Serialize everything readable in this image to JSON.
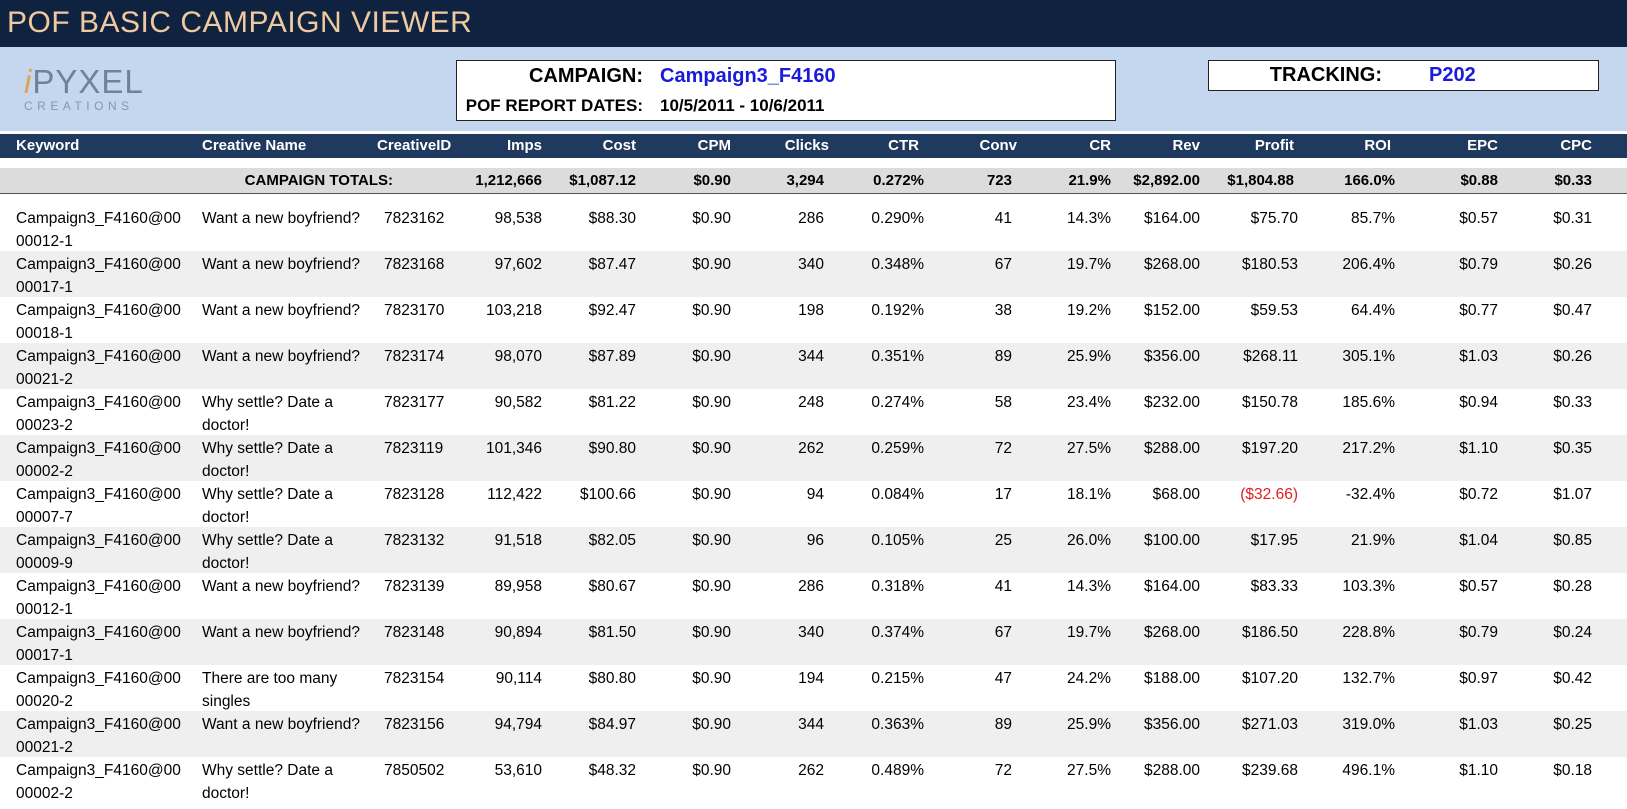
{
  "title": "POF BASIC CAMPAIGN VIEWER",
  "logo": {
    "letter_i": "i",
    "letters_rest": "PYXEL",
    "subtitle": "CREATIONS"
  },
  "campaign_box": {
    "campaign_label": "CAMPAIGN:",
    "campaign_value": "Campaign3_F4160",
    "dates_label": "POF REPORT DATES:",
    "dates_value": "10/5/2011 - 10/6/2011"
  },
  "tracking_box": {
    "label": "TRACKING:",
    "value": "P202"
  },
  "colors": {
    "title_bg": "#0f2341",
    "title_text": "#f0c9a0",
    "header_band": "#c4d7ef",
    "column_header_bg": "#1f3a5e",
    "link_blue": "#1a1adb",
    "negative": "#e02020"
  },
  "columns": [
    "Keyword",
    "Creative Name",
    "CreativeID",
    "Imps",
    "Cost",
    "CPM",
    "Clicks",
    "CTR",
    "Conv",
    "CR",
    "Rev",
    "Profit",
    "ROI",
    "EPC",
    "CPC"
  ],
  "totals": {
    "label": "CAMPAIGN TOTALS:",
    "imps": "1,212,666",
    "cost": "$1,087.12",
    "cpm": "$0.90",
    "clicks": "3,294",
    "ctr": "0.272%",
    "conv": "723",
    "cr": "21.9%",
    "rev": "$2,892.00",
    "profit": "$1,804.88",
    "roi": "166.0%",
    "epc": "$0.88",
    "cpc": "$0.33"
  },
  "rows": [
    {
      "kw1": "Campaign3_F4160@00",
      "kw2": "00012-1",
      "cn1": "Want a new boyfriend?",
      "cn2": "",
      "id": "7823162",
      "imps": "98,538",
      "cost": "$88.30",
      "cpm": "$0.90",
      "clicks": "286",
      "ctr": "0.290%",
      "conv": "41",
      "cr": "14.3%",
      "rev": "$164.00",
      "profit": "$75.70",
      "roi": "85.7%",
      "epc": "$0.57",
      "cpc": "$0.31"
    },
    {
      "kw1": "Campaign3_F4160@00",
      "kw2": "00017-1",
      "cn1": "Want a new boyfriend?",
      "cn2": "",
      "id": "7823168",
      "imps": "97,602",
      "cost": "$87.47",
      "cpm": "$0.90",
      "clicks": "340",
      "ctr": "0.348%",
      "conv": "67",
      "cr": "19.7%",
      "rev": "$268.00",
      "profit": "$180.53",
      "roi": "206.4%",
      "epc": "$0.79",
      "cpc": "$0.26"
    },
    {
      "kw1": "Campaign3_F4160@00",
      "kw2": "00018-1",
      "cn1": "Want a new boyfriend?",
      "cn2": "",
      "id": "7823170",
      "imps": "103,218",
      "cost": "$92.47",
      "cpm": "$0.90",
      "clicks": "198",
      "ctr": "0.192%",
      "conv": "38",
      "cr": "19.2%",
      "rev": "$152.00",
      "profit": "$59.53",
      "roi": "64.4%",
      "epc": "$0.77",
      "cpc": "$0.47"
    },
    {
      "kw1": "Campaign3_F4160@00",
      "kw2": "00021-2",
      "cn1": "Want a new boyfriend?",
      "cn2": "",
      "id": "7823174",
      "imps": "98,070",
      "cost": "$87.89",
      "cpm": "$0.90",
      "clicks": "344",
      "ctr": "0.351%",
      "conv": "89",
      "cr": "25.9%",
      "rev": "$356.00",
      "profit": "$268.11",
      "roi": "305.1%",
      "epc": "$1.03",
      "cpc": "$0.26"
    },
    {
      "kw1": "Campaign3_F4160@00",
      "kw2": "00023-2",
      "cn1": "Why settle? Date a",
      "cn2": "doctor!",
      "id": "7823177",
      "imps": "90,582",
      "cost": "$81.22",
      "cpm": "$0.90",
      "clicks": "248",
      "ctr": "0.274%",
      "conv": "58",
      "cr": "23.4%",
      "rev": "$232.00",
      "profit": "$150.78",
      "roi": "185.6%",
      "epc": "$0.94",
      "cpc": "$0.33"
    },
    {
      "kw1": "Campaign3_F4160@00",
      "kw2": "00002-2",
      "cn1": "Why settle? Date a",
      "cn2": "doctor!",
      "id": "7823119",
      "imps": "101,346",
      "cost": "$90.80",
      "cpm": "$0.90",
      "clicks": "262",
      "ctr": "0.259%",
      "conv": "72",
      "cr": "27.5%",
      "rev": "$288.00",
      "profit": "$197.20",
      "roi": "217.2%",
      "epc": "$1.10",
      "cpc": "$0.35"
    },
    {
      "kw1": "Campaign3_F4160@00",
      "kw2": "00007-7",
      "cn1": "Why settle? Date a",
      "cn2": "doctor!",
      "id": "7823128",
      "imps": "112,422",
      "cost": "$100.66",
      "cpm": "$0.90",
      "clicks": "94",
      "ctr": "0.084%",
      "conv": "17",
      "cr": "18.1%",
      "rev": "$68.00",
      "profit": "($32.66)",
      "roi": "-32.4%",
      "epc": "$0.72",
      "cpc": "$1.07",
      "negative_profit": true
    },
    {
      "kw1": "Campaign3_F4160@00",
      "kw2": "00009-9",
      "cn1": "Why settle? Date a",
      "cn2": "doctor!",
      "id": "7823132",
      "imps": "91,518",
      "cost": "$82.05",
      "cpm": "$0.90",
      "clicks": "96",
      "ctr": "0.105%",
      "conv": "25",
      "cr": "26.0%",
      "rev": "$100.00",
      "profit": "$17.95",
      "roi": "21.9%",
      "epc": "$1.04",
      "cpc": "$0.85"
    },
    {
      "kw1": "Campaign3_F4160@00",
      "kw2": "00012-1",
      "cn1": "Want a new boyfriend?",
      "cn2": "",
      "id": "7823139",
      "imps": "89,958",
      "cost": "$80.67",
      "cpm": "$0.90",
      "clicks": "286",
      "ctr": "0.318%",
      "conv": "41",
      "cr": "14.3%",
      "rev": "$164.00",
      "profit": "$83.33",
      "roi": "103.3%",
      "epc": "$0.57",
      "cpc": "$0.28"
    },
    {
      "kw1": "Campaign3_F4160@00",
      "kw2": "00017-1",
      "cn1": "Want a new boyfriend?",
      "cn2": "",
      "id": "7823148",
      "imps": "90,894",
      "cost": "$81.50",
      "cpm": "$0.90",
      "clicks": "340",
      "ctr": "0.374%",
      "conv": "67",
      "cr": "19.7%",
      "rev": "$268.00",
      "profit": "$186.50",
      "roi": "228.8%",
      "epc": "$0.79",
      "cpc": "$0.24"
    },
    {
      "kw1": "Campaign3_F4160@00",
      "kw2": "00020-2",
      "cn1": "There are too many",
      "cn2": "singles",
      "id": "7823154",
      "imps": "90,114",
      "cost": "$80.80",
      "cpm": "$0.90",
      "clicks": "194",
      "ctr": "0.215%",
      "conv": "47",
      "cr": "24.2%",
      "rev": "$188.00",
      "profit": "$107.20",
      "roi": "132.7%",
      "epc": "$0.97",
      "cpc": "$0.42"
    },
    {
      "kw1": "Campaign3_F4160@00",
      "kw2": "00021-2",
      "cn1": "Want a new boyfriend?",
      "cn2": "",
      "id": "7823156",
      "imps": "94,794",
      "cost": "$84.97",
      "cpm": "$0.90",
      "clicks": "344",
      "ctr": "0.363%",
      "conv": "89",
      "cr": "25.9%",
      "rev": "$356.00",
      "profit": "$271.03",
      "roi": "319.0%",
      "epc": "$1.03",
      "cpc": "$0.25"
    },
    {
      "kw1": "Campaign3_F4160@00",
      "kw2": "00002-2",
      "cn1": "Why settle? Date a",
      "cn2": "doctor!",
      "id": "7850502",
      "imps": "53,610",
      "cost": "$48.32",
      "cpm": "$0.90",
      "clicks": "262",
      "ctr": "0.489%",
      "conv": "72",
      "cr": "27.5%",
      "rev": "$288.00",
      "profit": "$239.68",
      "roi": "496.1%",
      "epc": "$1.10",
      "cpc": "$0.18"
    }
  ]
}
